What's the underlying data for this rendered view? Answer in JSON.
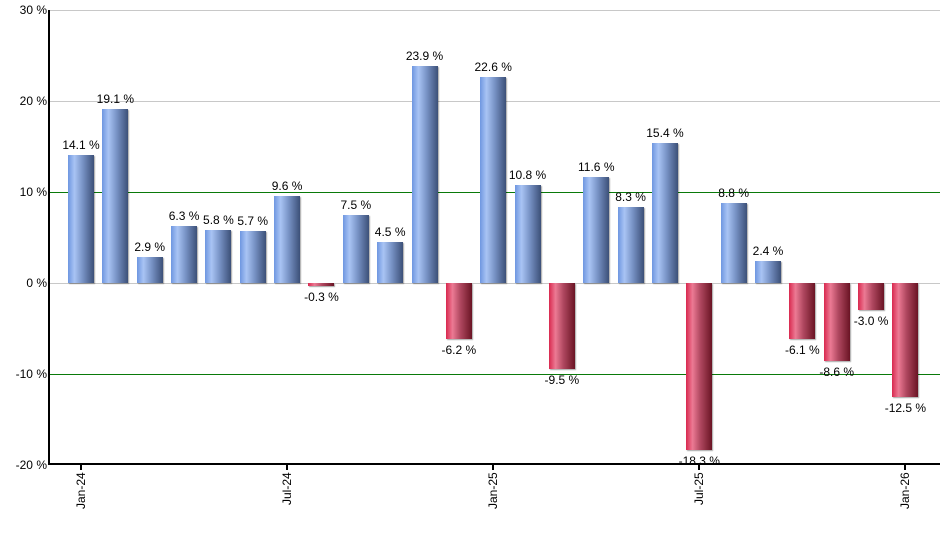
{
  "chart_data": {
    "type": "bar",
    "title": "",
    "xlabel": "",
    "ylabel": "",
    "ylim": [
      -20,
      30
    ],
    "yticks": [
      "30 %",
      "20 %",
      "10 %",
      "0 %",
      "-10 %",
      "-20 %"
    ],
    "ytick_values": [
      30,
      20,
      10,
      0,
      -10,
      -20
    ],
    "xtick_labels": [
      "Jan-24",
      "Jul-24",
      "Jan-25",
      "Jul-25",
      "Jan-26"
    ],
    "xtick_indices": [
      0,
      6,
      12,
      18,
      24
    ],
    "grid": true,
    "legend": null,
    "colors": {
      "positive": "#7a95c8",
      "negative": "#c8405c",
      "reference_lines": "#0a7a0a",
      "grid": "#c8c8c8"
    },
    "reference_lines": [
      10,
      -10
    ],
    "categories": [
      "Jan-24",
      "Feb-24",
      "Mar-24",
      "Apr-24",
      "May-24",
      "Jun-24",
      "Jul-24",
      "Aug-24",
      "Sep-24",
      "Oct-24",
      "Nov-24",
      "Dec-24",
      "Jan-25",
      "Feb-25",
      "Mar-25",
      "Apr-25",
      "May-25",
      "Jun-25",
      "Jul-25",
      "Aug-25",
      "Sep-25",
      "Oct-25",
      "Nov-25",
      "Dec-25",
      "Jan-26"
    ],
    "values": [
      14.1,
      19.1,
      2.9,
      6.3,
      5.8,
      5.7,
      9.6,
      -0.3,
      7.5,
      4.5,
      23.9,
      -6.2,
      22.6,
      10.8,
      -9.5,
      11.6,
      8.3,
      15.4,
      -18.3,
      8.8,
      2.4,
      -6.1,
      -8.6,
      -3.0,
      -12.5
    ],
    "value_labels": [
      "14.1 %",
      "19.1 %",
      "2.9 %",
      "6.3 %",
      "5.8 %",
      "5.7 %",
      "9.6 %",
      "-0.3 %",
      "7.5 %",
      "4.5 %",
      "23.9 %",
      "-6.2 %",
      "22.6 %",
      "10.8 %",
      "-9.5 %",
      "11.6 %",
      "8.3 %",
      "15.4 %",
      "-18.3 %",
      "8.8 %",
      "2.4 %",
      "-6.1 %",
      "-8.6 %",
      "-3.0 %",
      "-12.5 %"
    ]
  }
}
